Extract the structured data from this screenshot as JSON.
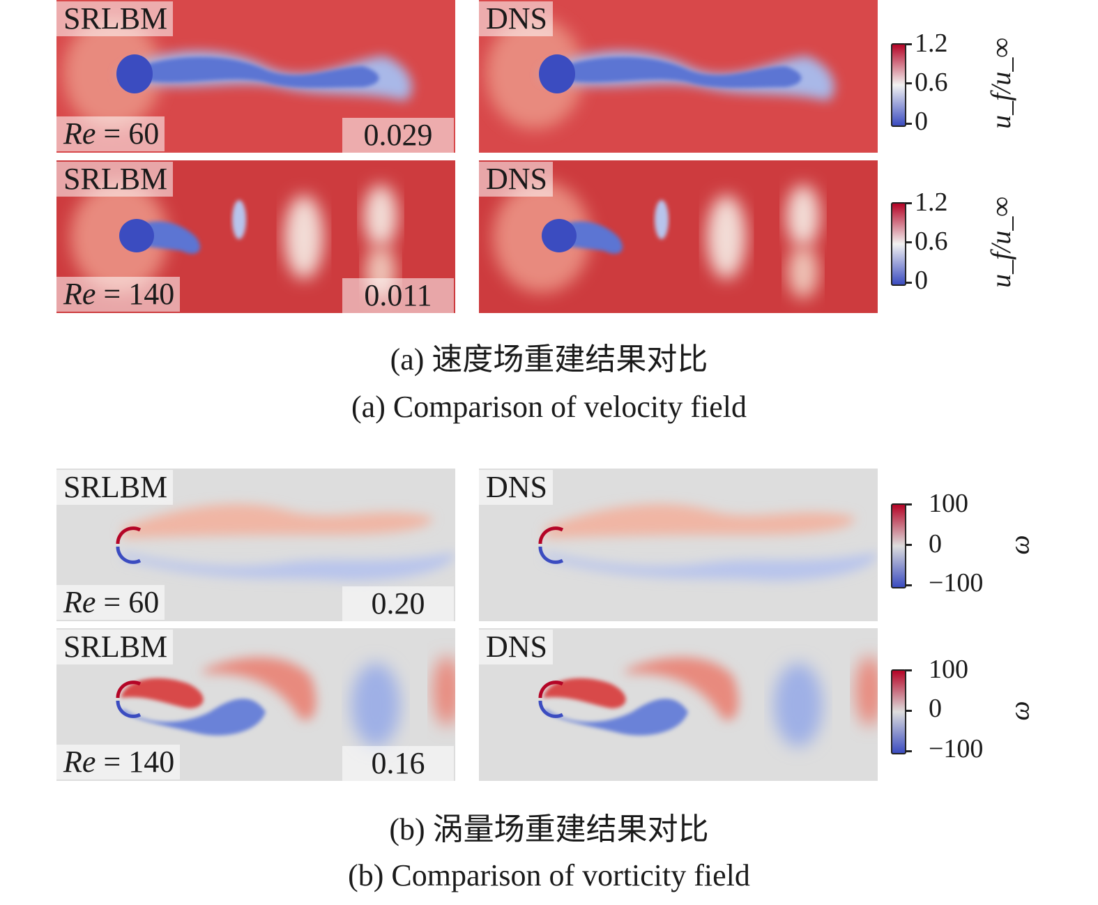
{
  "velocity": {
    "rows": [
      {
        "srlbm_label": "SRLBM",
        "dns_label": "DNS",
        "re_label": "Re",
        "re_value": "= 60",
        "error": "0.029"
      },
      {
        "srlbm_label": "SRLBM",
        "dns_label": "DNS",
        "re_label": "Re",
        "re_value": "= 140",
        "error": "0.011"
      }
    ],
    "colorbar": {
      "max": "1.2",
      "mid": "0.6",
      "min": "0",
      "label": "u_f/u_∞",
      "colors": [
        "#3b4cc0",
        "#f2f2f2",
        "#b40426"
      ]
    },
    "caption_cn": "(a) 速度场重建结果对比",
    "caption_en": "(a) Comparison of velocity field"
  },
  "vorticity": {
    "rows": [
      {
        "srlbm_label": "SRLBM",
        "dns_label": "DNS",
        "re_label": "Re",
        "re_value": "= 60",
        "error": "0.20"
      },
      {
        "srlbm_label": "SRLBM",
        "dns_label": "DNS",
        "re_label": "Re",
        "re_value": "= 140",
        "error": "0.16"
      }
    ],
    "colorbar": {
      "max": "100",
      "mid": "0",
      "min": "−100",
      "label": "ω",
      "colors": [
        "#3b4cc0",
        "#dddddd",
        "#b40426"
      ]
    },
    "caption_cn": "(b) 涡量场重建结果对比",
    "caption_en": "(b) Comparison of vorticity field"
  }
}
